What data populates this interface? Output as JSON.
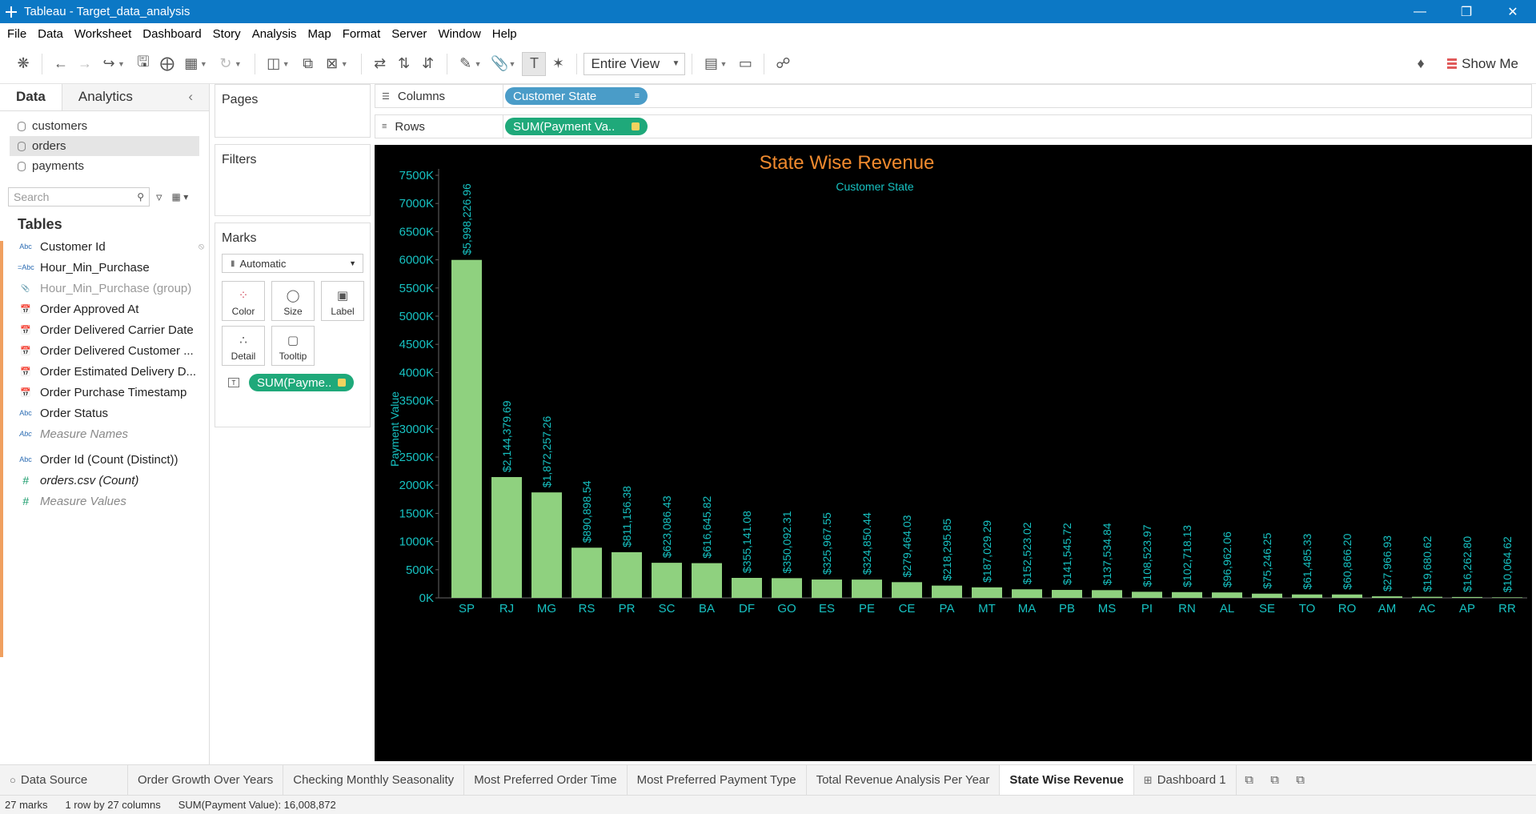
{
  "window": {
    "title": "Tableau - Target_data_analysis"
  },
  "menu": [
    "File",
    "Data",
    "Worksheet",
    "Dashboard",
    "Story",
    "Analysis",
    "Map",
    "Format",
    "Server",
    "Window",
    "Help"
  ],
  "toolbar": {
    "view_select": "Entire View",
    "show_me": "Show Me"
  },
  "data_pane": {
    "tabs": [
      "Data",
      "Analytics"
    ],
    "datasources": [
      "customers",
      "orders",
      "payments"
    ],
    "search_placeholder": "Search",
    "tables_title": "Tables",
    "fields": [
      {
        "type": "Abc",
        "name": "Customer Id",
        "style": "normal"
      },
      {
        "type": "=Abc",
        "name": "Hour_Min_Purchase",
        "style": "normal"
      },
      {
        "type": "clip",
        "name": "Hour_Min_Purchase (group)",
        "style": "dim"
      },
      {
        "type": "cal",
        "name": "Order Approved At",
        "style": "normal"
      },
      {
        "type": "cal",
        "name": "Order Delivered Carrier Date",
        "style": "normal"
      },
      {
        "type": "cal",
        "name": "Order Delivered Customer ...",
        "style": "normal"
      },
      {
        "type": "cal",
        "name": "Order Estimated Delivery D...",
        "style": "normal"
      },
      {
        "type": "cal",
        "name": "Order Purchase Timestamp",
        "style": "normal"
      },
      {
        "type": "Abc",
        "name": "Order Status",
        "style": "normal"
      },
      {
        "type": "Abc",
        "name": "Measure Names",
        "style": "italic"
      },
      {
        "type": "Abc",
        "name": "Order Id (Count (Distinct))",
        "style": "normal"
      },
      {
        "type": "#",
        "name": "orders.csv (Count)",
        "style": "italic-dark"
      },
      {
        "type": "#",
        "name": "Measure Values",
        "style": "italic"
      }
    ]
  },
  "shelves": {
    "pages_title": "Pages",
    "filters_title": "Filters",
    "marks_title": "Marks",
    "marks_type": "Automatic",
    "marks_buttons": [
      "Color",
      "Size",
      "Label",
      "Detail",
      "Tooltip"
    ],
    "marks_pill": "SUM(Payme..",
    "columns_label": "Columns",
    "rows_label": "Rows",
    "columns_pill": "Customer State",
    "rows_pill": "SUM(Payment Va.."
  },
  "chart_data": {
    "type": "bar",
    "title": "State Wise Revenue",
    "subtitle": "Customer State",
    "ylabel": "Payment Value",
    "xlabel": "",
    "ylim": [
      0,
      7500000
    ],
    "yticks": [
      0,
      500000,
      1000000,
      1500000,
      2000000,
      2500000,
      3000000,
      3500000,
      4000000,
      4500000,
      5000000,
      5500000,
      6000000,
      6500000,
      7000000,
      7500000
    ],
    "ytick_labels": [
      "0K",
      "500K",
      "1000K",
      "1500K",
      "2000K",
      "2500K",
      "3000K",
      "3500K",
      "4000K",
      "4500K",
      "5000K",
      "5500K",
      "6000K",
      "6500K",
      "7000K",
      "7500K"
    ],
    "categories": [
      "SP",
      "RJ",
      "MG",
      "RS",
      "PR",
      "SC",
      "BA",
      "DF",
      "GO",
      "ES",
      "PE",
      "CE",
      "PA",
      "MT",
      "MA",
      "PB",
      "MS",
      "PI",
      "RN",
      "AL",
      "SE",
      "TO",
      "RO",
      "AM",
      "AC",
      "AP",
      "RR"
    ],
    "values": [
      5998226.96,
      2144379.69,
      1872257.26,
      890898.54,
      811156.38,
      623086.43,
      616645.82,
      355141.08,
      350092.31,
      325967.55,
      324850.44,
      279464.03,
      218295.85,
      187029.29,
      152523.02,
      141545.72,
      137534.84,
      108523.97,
      102718.13,
      96962.06,
      75246.25,
      61485.33,
      60866.2,
      27966.93,
      19680.62,
      16262.8,
      10064.62
    ],
    "labels": [
      "$5,998,226.96",
      "$2,144,379.69",
      "$1,872,257.26",
      "$890,898.54",
      "$811,156.38",
      "$623,086.43",
      "$616,645.82",
      "$355,141.08",
      "$350,092.31",
      "$325,967.55",
      "$324,850.44",
      "$279,464.03",
      "$218,295.85",
      "$187,029.29",
      "$152,523.02",
      "$141,545.72",
      "$137,534.84",
      "$108,523.97",
      "$102,718.13",
      "$96,962.06",
      "$75,246.25",
      "$61,485.33",
      "$60,866.20",
      "$27,966.93",
      "$19,680.62",
      "$16,262.80",
      "$10,064.62"
    ],
    "colors": {
      "bar": "#8fd17f",
      "text": "#17c2c2",
      "title": "#f08a2e",
      "background": "#000000"
    }
  },
  "sheet_tabs": [
    "Data Source",
    "Order Growth Over Years",
    "Checking Monthly Seasonality",
    "Most Preferred Order Time",
    "Most Preferred Payment Type",
    "Total Revenue Analysis Per Year",
    "State Wise Revenue",
    "Dashboard 1"
  ],
  "active_sheet": "State Wise Revenue",
  "status": {
    "marks": "27 marks",
    "rows_cols": "1 row by 27 columns",
    "sum": "SUM(Payment Value): 16,008,872"
  }
}
